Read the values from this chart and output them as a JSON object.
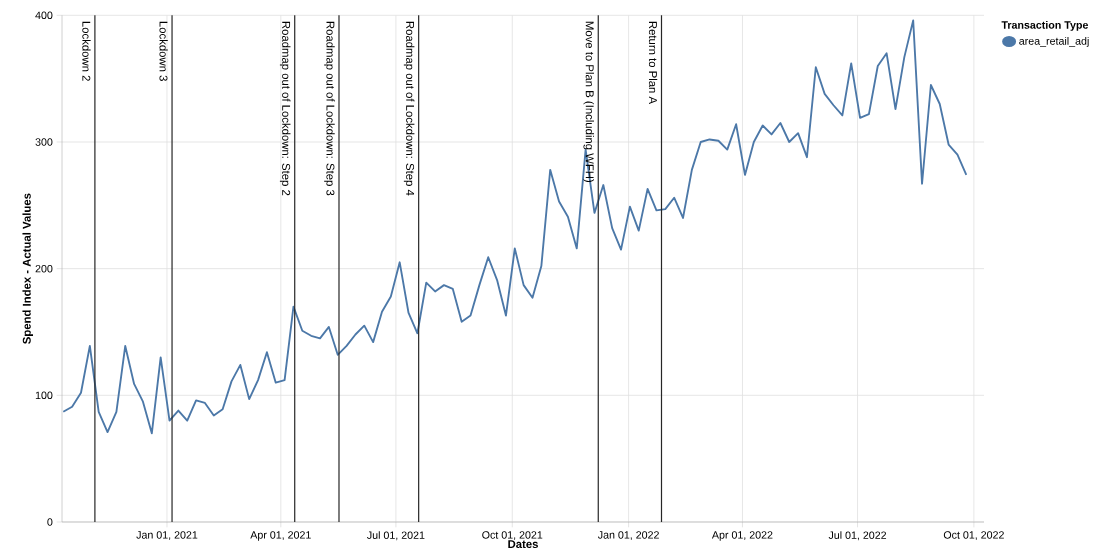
{
  "chart_data": {
    "type": "line",
    "xlabel": "Dates",
    "ylabel": "Spend Index - Actual Values",
    "legend_title": "Transaction Type",
    "legend": "top right",
    "grid": true,
    "line_style": "solid",
    "marker": "none",
    "xlim": [
      "2020-10-10",
      "2022-10-09"
    ],
    "ylim": [
      0,
      400
    ],
    "yticks": [
      0,
      100,
      200,
      300,
      400
    ],
    "xticks": [
      {
        "value": "2021-01-01",
        "label": "Jan 01, 2021"
      },
      {
        "value": "2021-04-01",
        "label": "Apr 01, 2021"
      },
      {
        "value": "2021-07-01",
        "label": "Jul 01, 2021"
      },
      {
        "value": "2021-10-01",
        "label": "Oct 01, 2021"
      },
      {
        "value": "2022-01-01",
        "label": "Jan 01, 2022"
      },
      {
        "value": "2022-04-01",
        "label": "Apr 01, 2022"
      },
      {
        "value": "2022-07-01",
        "label": "Jul 01, 2022"
      },
      {
        "value": "2022-10-01",
        "label": "Oct 01, 2022"
      }
    ],
    "x": [
      "2020-10-11",
      "2020-10-18",
      "2020-10-25",
      "2020-11-01",
      "2020-11-08",
      "2020-11-15",
      "2020-11-22",
      "2020-11-29",
      "2020-12-06",
      "2020-12-13",
      "2020-12-20",
      "2020-12-27",
      "2021-01-03",
      "2021-01-10",
      "2021-01-17",
      "2021-01-24",
      "2021-01-31",
      "2021-02-07",
      "2021-02-14",
      "2021-02-21",
      "2021-02-28",
      "2021-03-07",
      "2021-03-14",
      "2021-03-21",
      "2021-03-28",
      "2021-04-04",
      "2021-04-11",
      "2021-04-18",
      "2021-04-25",
      "2021-05-02",
      "2021-05-09",
      "2021-05-16",
      "2021-05-23",
      "2021-05-30",
      "2021-06-06",
      "2021-06-13",
      "2021-06-20",
      "2021-06-27",
      "2021-07-04",
      "2021-07-11",
      "2021-07-18",
      "2021-07-25",
      "2021-08-01",
      "2021-08-08",
      "2021-08-15",
      "2021-08-22",
      "2021-08-29",
      "2021-09-05",
      "2021-09-12",
      "2021-09-19",
      "2021-09-26",
      "2021-10-03",
      "2021-10-10",
      "2021-10-17",
      "2021-10-24",
      "2021-10-31",
      "2021-11-07",
      "2021-11-14",
      "2021-11-21",
      "2021-11-28",
      "2021-12-05",
      "2021-12-12",
      "2021-12-19",
      "2021-12-26",
      "2022-01-02",
      "2022-01-09",
      "2022-01-16",
      "2022-01-23",
      "2022-01-30",
      "2022-02-06",
      "2022-02-13",
      "2022-02-20",
      "2022-02-27",
      "2022-03-06",
      "2022-03-13",
      "2022-03-20",
      "2022-03-27",
      "2022-04-03",
      "2022-04-10",
      "2022-04-17",
      "2022-04-24",
      "2022-05-01",
      "2022-05-08",
      "2022-05-15",
      "2022-05-22",
      "2022-05-29",
      "2022-06-05",
      "2022-06-12",
      "2022-06-19",
      "2022-06-26",
      "2022-07-03",
      "2022-07-10",
      "2022-07-17",
      "2022-07-24",
      "2022-07-31",
      "2022-08-07",
      "2022-08-14",
      "2022-08-21",
      "2022-08-28",
      "2022-09-04",
      "2022-09-11",
      "2022-09-18",
      "2022-09-25"
    ],
    "series": [
      {
        "name": "area_retail_adj",
        "color": "#4c78a8",
        "values": [
          87,
          91,
          102,
          139,
          87,
          71,
          87,
          139,
          109,
          95,
          70,
          130,
          80,
          88,
          80,
          96,
          94,
          84,
          89,
          111,
          124,
          97,
          112,
          134,
          110,
          112,
          170,
          151,
          147,
          145,
          154,
          132,
          139,
          148,
          155,
          142,
          166,
          178,
          205,
          165,
          149,
          189,
          182,
          187,
          184,
          158,
          163,
          187,
          209,
          191,
          163,
          216,
          187,
          177,
          202,
          278,
          253,
          241,
          216,
          294,
          244,
          266,
          232,
          215,
          249,
          230,
          263,
          246,
          247,
          256,
          240,
          278,
          300,
          302,
          301,
          294,
          314,
          274,
          300,
          313,
          306,
          315,
          300,
          307,
          288,
          359,
          338,
          329,
          321,
          362,
          319,
          322,
          360,
          370,
          326,
          367,
          396,
          267,
          345,
          330,
          298,
          290,
          274
        ]
      }
    ],
    "ref_lines": [
      {
        "axis": "x",
        "value": "2020-11-05",
        "label": "Lockdown 2"
      },
      {
        "axis": "x",
        "value": "2021-01-05",
        "label": "Lockdown 3"
      },
      {
        "axis": "x",
        "value": "2021-04-12",
        "label": "Roadmap out of Lockdown: Step 2"
      },
      {
        "axis": "x",
        "value": "2021-05-17",
        "label": "Roadmap out of Lockdown: Step 3"
      },
      {
        "axis": "x",
        "value": "2021-07-19",
        "label": "Roadmap out of Lockdown: Step 4"
      },
      {
        "axis": "x",
        "value": "2021-12-08",
        "label": "Move to Plan B (Including WFH)"
      },
      {
        "axis": "x",
        "value": "2022-01-27",
        "label": "Return to Plan A"
      }
    ]
  }
}
